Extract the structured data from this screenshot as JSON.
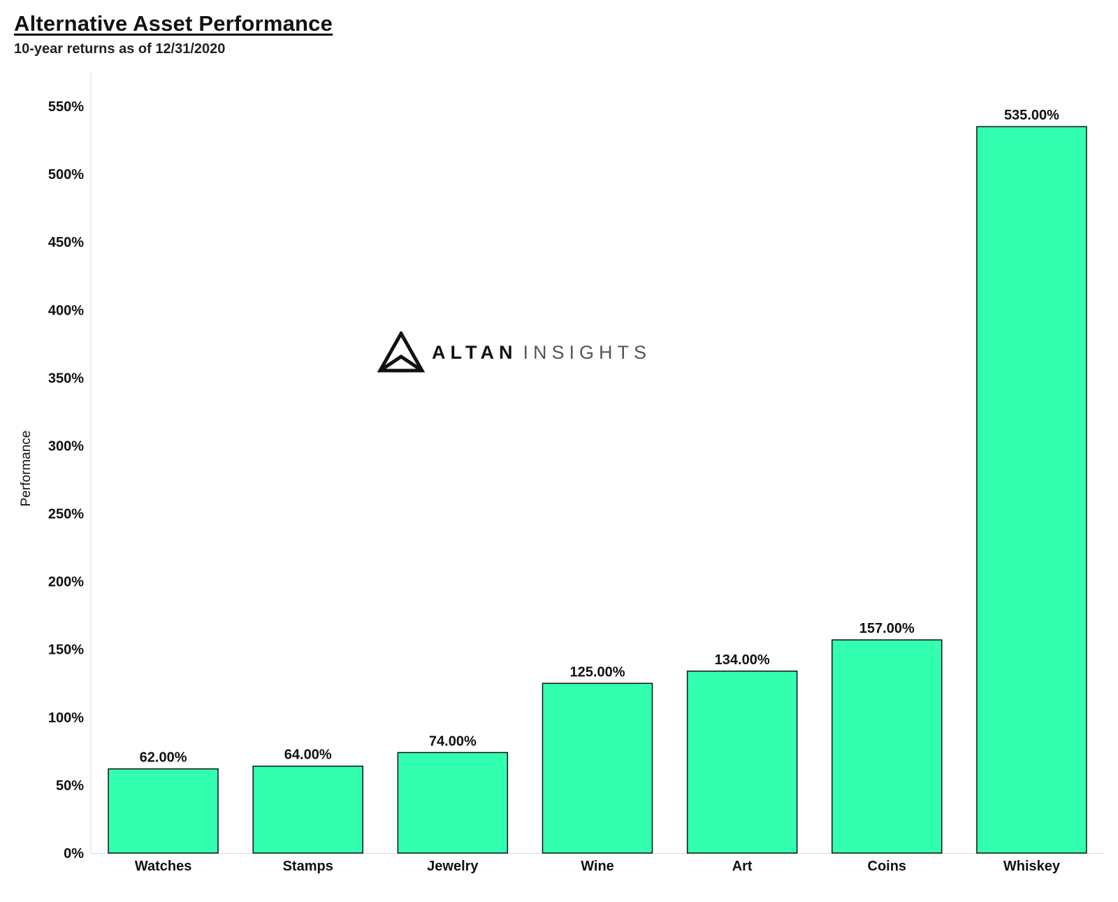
{
  "chart_data": {
    "type": "bar",
    "title": "Alternative Asset Performance",
    "subtitle": "10-year returns as of 12/31/2020",
    "ylabel": "Performance",
    "xlabel": "",
    "categories": [
      "Watches",
      "Stamps",
      "Jewelry",
      "Wine",
      "Art",
      "Coins",
      "Whiskey"
    ],
    "values": [
      62,
      64,
      74,
      125,
      134,
      157,
      535
    ],
    "value_labels": [
      "62.00%",
      "64.00%",
      "74.00%",
      "125.00%",
      "134.00%",
      "157.00%",
      "535.00%"
    ],
    "ylim": [
      0,
      560
    ],
    "yticks": [
      0,
      50,
      100,
      150,
      200,
      250,
      300,
      350,
      400,
      450,
      500,
      550
    ],
    "ytick_labels": [
      "0%",
      "50%",
      "100%",
      "150%",
      "200%",
      "250%",
      "300%",
      "350%",
      "400%",
      "450%",
      "500%",
      "550%"
    ],
    "grid": false,
    "bar_color": "#33ffb0",
    "bar_edge_color": "#111111"
  },
  "watermark": {
    "word1": "ALTAN",
    "word2": "INSIGHTS",
    "icon": "triangle-logo-icon"
  }
}
